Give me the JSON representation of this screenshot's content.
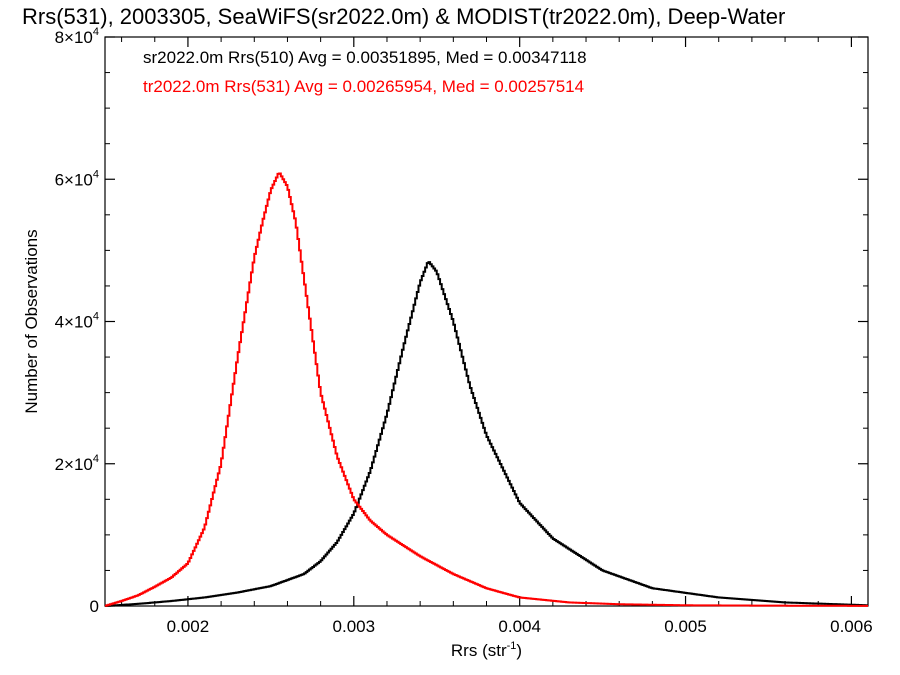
{
  "chart_data": {
    "type": "line",
    "title": "Rrs(531), 2003305, SeaWiFS(sr2022.0m) & MODIST(tr2022.0m), Deep-Water",
    "xlabel": "Rrs (str",
    "xlabel_sup": "-1",
    "xlabel_close": ")",
    "ylabel": "Number of Observations",
    "xlim": [
      0.0015,
      0.0061
    ],
    "ylim": [
      0,
      80000
    ],
    "x_ticks": [
      0.002,
      0.003,
      0.004,
      0.005,
      0.006
    ],
    "x_tick_labels": [
      "0.002",
      "0.003",
      "0.004",
      "0.005",
      "0.006"
    ],
    "y_ticks": [
      0,
      20000,
      40000,
      60000,
      80000
    ],
    "y_tick_labels": [
      {
        "base": "0",
        "exp": ""
      },
      {
        "base": "2×10",
        "exp": "4"
      },
      {
        "base": "4×10",
        "exp": "4"
      },
      {
        "base": "6×10",
        "exp": "4"
      },
      {
        "base": "8×10",
        "exp": "4"
      }
    ],
    "grid": false,
    "legend_position": "top-left",
    "series": [
      {
        "name": "sr2022.0m Rrs(510) Avg = 0.00351895, Med = 0.00347118",
        "color": "#000000",
        "x": [
          0.0015,
          0.0017,
          0.0019,
          0.0021,
          0.0023,
          0.0025,
          0.0027,
          0.0028,
          0.0029,
          0.003,
          0.0031,
          0.0032,
          0.0033,
          0.0034,
          0.00345,
          0.0035,
          0.0036,
          0.0037,
          0.0038,
          0.004,
          0.0042,
          0.0045,
          0.0048,
          0.0052,
          0.0056,
          0.0061
        ],
        "y": [
          0,
          300,
          700,
          1200,
          1900,
          2800,
          4500,
          6300,
          9000,
          13000,
          19000,
          27000,
          36500,
          45500,
          48500,
          47000,
          40000,
          31000,
          24000,
          14500,
          9500,
          5000,
          2500,
          1200,
          500,
          100
        ]
      },
      {
        "name": "tr2022.0m Rrs(531) Avg = 0.00265954, Med = 0.00257514",
        "color": "#ff0000",
        "x": [
          0.0015,
          0.0016,
          0.0017,
          0.0018,
          0.0019,
          0.002,
          0.0021,
          0.0022,
          0.0023,
          0.0024,
          0.00245,
          0.0025,
          0.00255,
          0.0026,
          0.00265,
          0.0027,
          0.0028,
          0.0029,
          0.003,
          0.0031,
          0.0032,
          0.0033,
          0.0034,
          0.0036,
          0.0038,
          0.004,
          0.0043,
          0.0046,
          0.005,
          0.0055,
          0.0061
        ],
        "y": [
          0,
          700,
          1500,
          2700,
          4000,
          6000,
          11000,
          20000,
          35000,
          49000,
          54000,
          58500,
          61000,
          59000,
          54000,
          46000,
          30000,
          21000,
          15000,
          12000,
          10000,
          8500,
          7000,
          4500,
          2500,
          1200,
          500,
          250,
          100,
          50,
          20
        ]
      }
    ]
  }
}
